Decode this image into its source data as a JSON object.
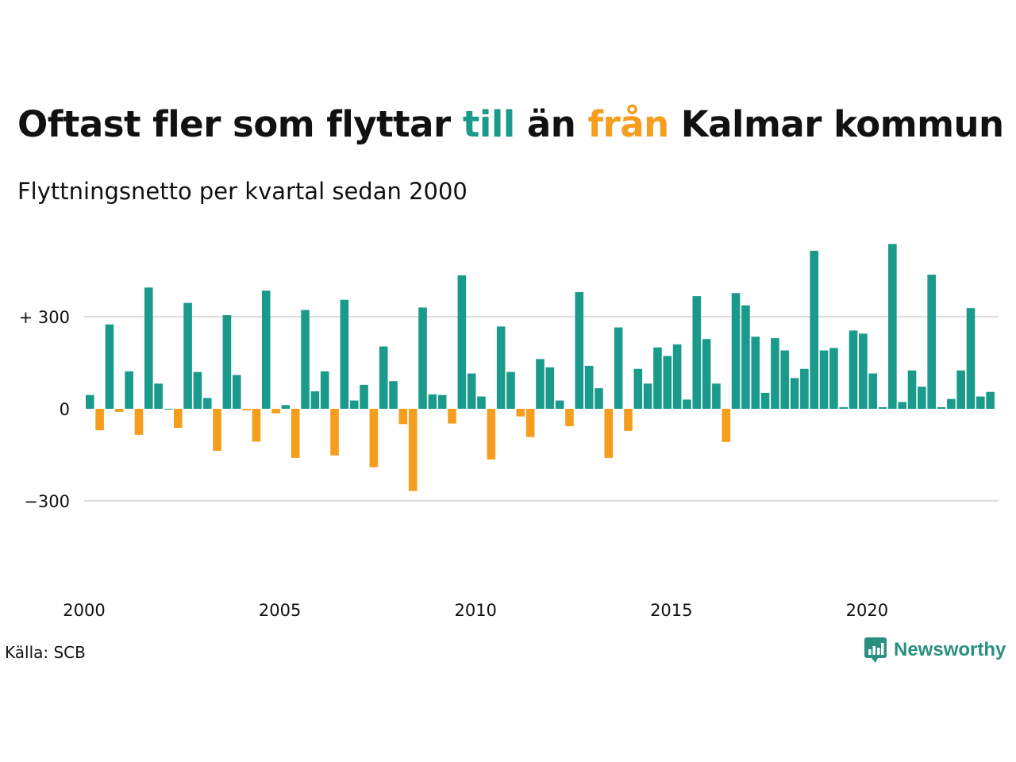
{
  "header": {
    "title_parts": [
      "Oftast fler som flyttar ",
      "till",
      " än ",
      "från",
      " Kalmar kommun"
    ],
    "subtitle": "Flyttningsnetto per kvartal sedan 2000"
  },
  "footer": {
    "source": "Källa: SCB",
    "brand": "Newsworthy"
  },
  "colors": {
    "positive": "#1a9a8a",
    "negative": "#f59d1c",
    "grid": "#dddddd",
    "text": "#111111"
  },
  "chart_data": {
    "type": "bar",
    "title": "Oftast fler som flyttar till än från Kalmar kommun",
    "subtitle": "Flyttningsnetto per kvartal sedan 2000",
    "x_start": "2000Q1",
    "x_tick_labels": [
      "2000",
      "2005",
      "2010",
      "2015",
      "2020"
    ],
    "y_tick_values": [
      300,
      0,
      -300
    ],
    "y_tick_labels": [
      "+ 300",
      "0",
      "−300"
    ],
    "ylim": [
      -480,
      540
    ],
    "grid": true,
    "values": [
      45,
      -70,
      275,
      -10,
      122,
      -85,
      395,
      82,
      0,
      -62,
      345,
      120,
      35,
      -137,
      305,
      110,
      -5,
      -107,
      385,
      -15,
      12,
      -160,
      322,
      57,
      122,
      -152,
      355,
      27,
      78,
      -190,
      203,
      90,
      -50,
      -268,
      330,
      47,
      45,
      -48,
      435,
      115,
      40,
      -165,
      268,
      120,
      -25,
      -92,
      162,
      135,
      27,
      -57,
      380,
      140,
      67,
      -160,
      265,
      -72,
      130,
      82,
      200,
      172,
      210,
      30,
      367,
      227,
      82,
      -108,
      377,
      337,
      235,
      52,
      230,
      190,
      100,
      130,
      515,
      190,
      198,
      5,
      255,
      245,
      115,
      5,
      537,
      22,
      125,
      72,
      437,
      5,
      32,
      125,
      328,
      40,
      55
    ]
  }
}
